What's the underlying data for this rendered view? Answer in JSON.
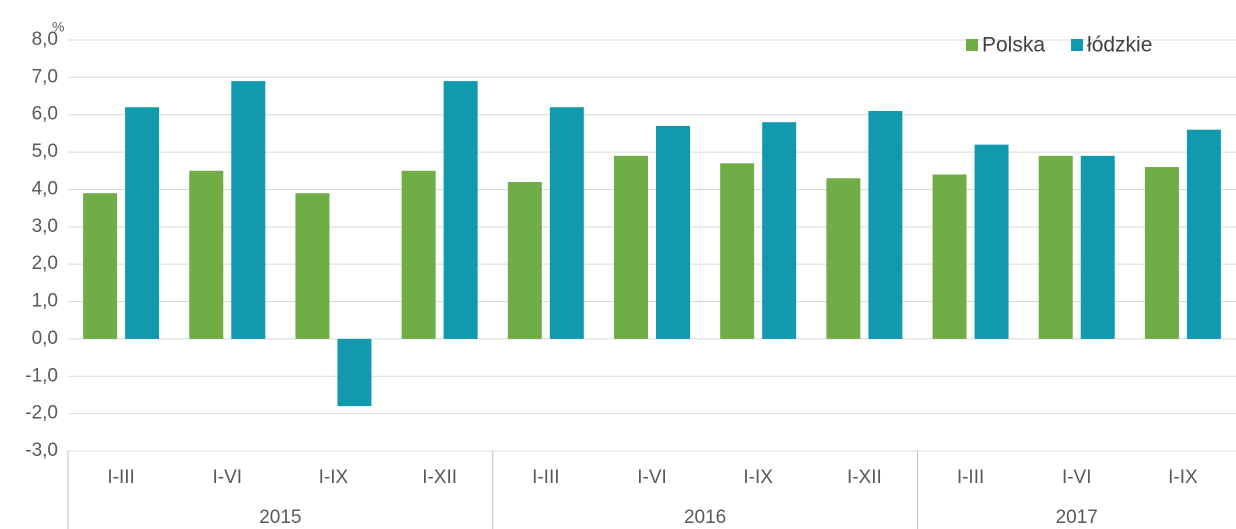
{
  "chart_data": {
    "type": "bar",
    "y_unit": "%",
    "categories": [
      "I-III",
      "I-VI",
      "I-IX",
      "I-XII",
      "I-III",
      "I-VI",
      "I-IX",
      "I-XII",
      "I-III",
      "I-VI",
      "I-IX"
    ],
    "groups": [
      {
        "label": "2015",
        "count": 4
      },
      {
        "label": "2016",
        "count": 4
      },
      {
        "label": "2017",
        "count": 3
      }
    ],
    "series": [
      {
        "name": "Polska",
        "color": "#70ad47",
        "values": [
          3.9,
          4.5,
          3.9,
          4.5,
          4.2,
          4.9,
          4.7,
          4.3,
          4.4,
          4.9,
          4.6
        ]
      },
      {
        "name": "łódzkie",
        "color": "#1199ae",
        "values": [
          6.2,
          6.9,
          -1.8,
          6.9,
          6.2,
          5.7,
          5.8,
          6.1,
          5.2,
          4.9,
          5.6
        ]
      }
    ],
    "ylim": [
      -3,
      8
    ],
    "yticks": [
      {
        "value": -3,
        "label": "-3,0"
      },
      {
        "value": -2,
        "label": "-2,0"
      },
      {
        "value": -1,
        "label": "-1,0"
      },
      {
        "value": 0,
        "label": "0,0"
      },
      {
        "value": 1,
        "label": "1,0"
      },
      {
        "value": 2,
        "label": "2,0"
      },
      {
        "value": 3,
        "label": "3,0"
      },
      {
        "value": 4,
        "label": "4,0"
      },
      {
        "value": 5,
        "label": "5,0"
      },
      {
        "value": 6,
        "label": "6,0"
      },
      {
        "value": 7,
        "label": "7,0"
      },
      {
        "value": 8,
        "label": "8,0"
      }
    ],
    "grid": true,
    "legend": "top-right"
  }
}
